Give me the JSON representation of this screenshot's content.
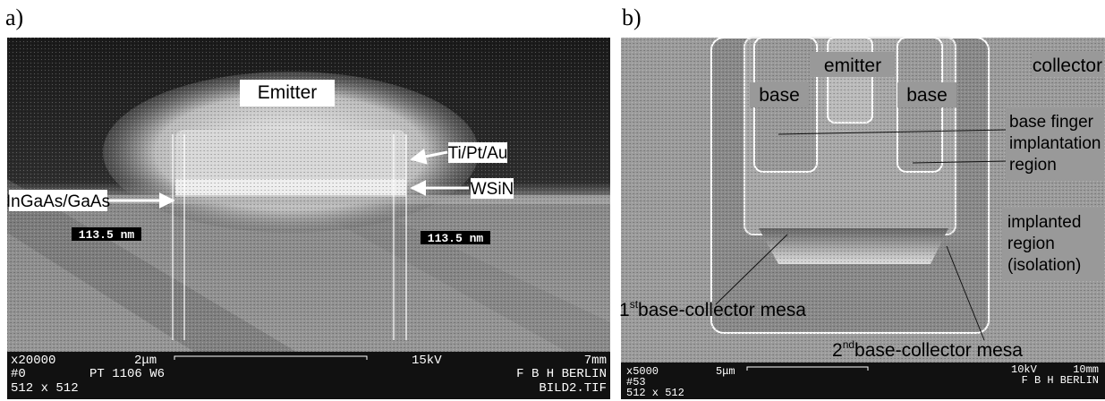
{
  "panels": [
    {
      "label": "a)",
      "annotations": [
        "Emitter",
        "Ti/Pt/Au",
        "WSiN",
        "InGaAs/GaAs"
      ],
      "measurements": [
        "113.5 nm",
        "113.5 nm"
      ],
      "info_bar": {
        "magnification": "x20000",
        "scale": "2μm",
        "voltage": "15kV",
        "distance": "7mm",
        "sample": "#0",
        "sample_id": "PT 1106 W6",
        "lab": "F B H BERLIN",
        "resolution": "512 x 512",
        "file": "BILD2.TIF"
      }
    },
    {
      "label": "b)",
      "annotations": [
        "emitter",
        "collector",
        "base",
        "base"
      ],
      "region_labels": [
        [
          "base finger",
          "implantation",
          "region"
        ],
        [
          "implanted",
          "region",
          "(isolation)"
        ]
      ],
      "mesa_labels": [
        {
          "number": "1",
          "ordinal": "st",
          "text": "base-collector mesa"
        },
        {
          "number": "2",
          "ordinal": "nd",
          "text": "base-collector mesa"
        }
      ],
      "info_bar": {
        "magnification": "x5000",
        "scale": "5μm",
        "voltage": "10kV",
        "distance": "10mm",
        "sample": "#53",
        "lab": "F B H BERLIN",
        "resolution": "512 x 512"
      }
    }
  ]
}
